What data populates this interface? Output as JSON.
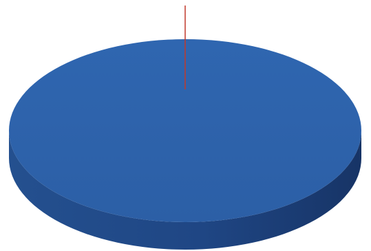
{
  "chart_data": {
    "type": "pie",
    "style": "3d",
    "slices": [
      {
        "value": 100,
        "color": "#2E64AE",
        "side_color": "#1D3F78"
      }
    ],
    "marker": {
      "color": "#C0392B"
    },
    "legend": "none",
    "grid": false
  }
}
